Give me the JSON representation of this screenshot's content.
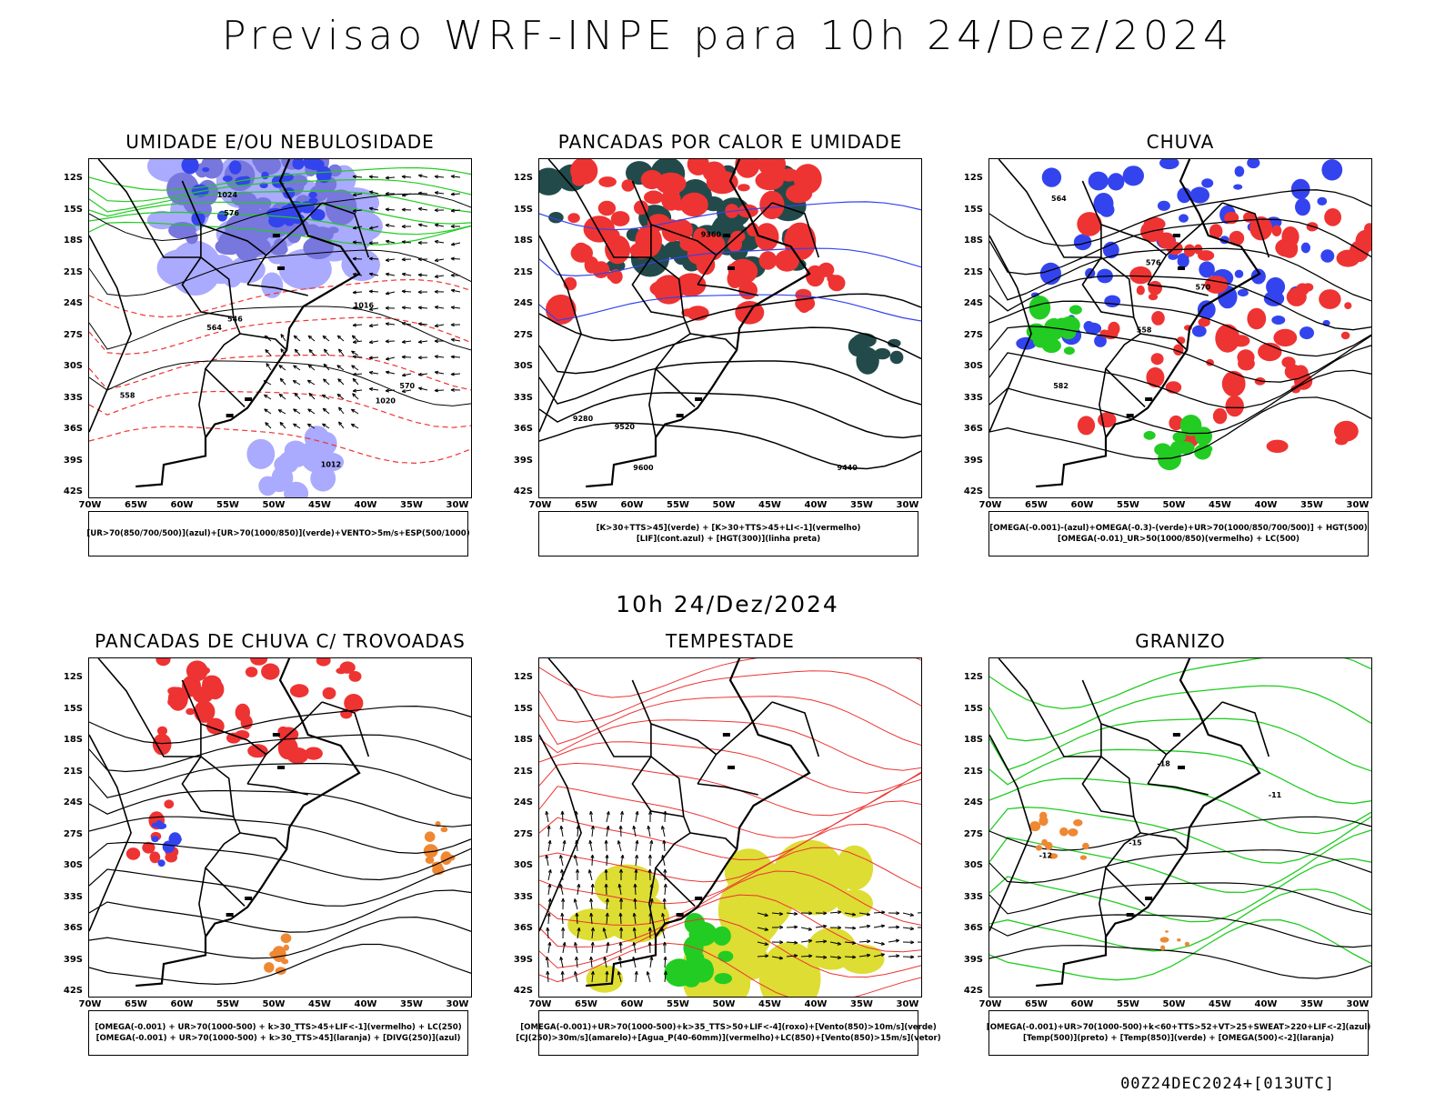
{
  "header": {
    "title": "Previsao WRF-INPE  para 10h 24/Dez/2024",
    "subtitle": "10h 24/Dez/2024",
    "footer": "00Z24DEC2024+[013UTC]"
  },
  "axes": {
    "lat_labels": [
      "12S",
      "15S",
      "18S",
      "21S",
      "24S",
      "27S",
      "30S",
      "33S",
      "36S",
      "39S",
      "42S"
    ],
    "lon_labels": [
      "70W",
      "65W",
      "60W",
      "55W",
      "50W",
      "45W",
      "40W",
      "35W",
      "30W"
    ]
  },
  "colors": {
    "blue": "#3344ee",
    "light_blue": "#aaaaff",
    "mid_blue": "#7777dd",
    "green": "#22cc22",
    "red": "#ee3333",
    "dark_teal": "#234a4a",
    "orange": "#ee8833",
    "yellow": "#dddd33",
    "black": "#000000"
  },
  "panels": [
    {
      "id": "umidade",
      "title": "UMIDADE E/OU NEBULOSIDADE",
      "legend": [
        "[UR>70(850/700/500)](azul)+[UR>70(1000/850)](verde)+VENTO>5m/s+ESP(500/1000)"
      ],
      "contour_labels": [
        "1012",
        "1016",
        "1020",
        "1024",
        "570",
        "576",
        "558",
        "546",
        "564"
      ]
    },
    {
      "id": "pancadas_calor",
      "title": "PANCADAS POR CALOR E UMIDADE",
      "legend": [
        "[K>30+TTS>45](verde) + [K>30+TTS>45+LI<-1](vermelho)",
        "[LIF](cont.azul) + [HGT(300)](linha preta)"
      ],
      "contour_labels": [
        "9600",
        "9520",
        "9440",
        "9360",
        "9280"
      ]
    },
    {
      "id": "chuva",
      "title": "CHUVA",
      "legend": [
        "[OMEGA(-0.001)-(azul)+OMEGA(-0.3)-(verde)+UR>70(1000/850/700/500)] + HGT(500)",
        "[OMEGA(-0.01)_UR>50(1000/850)(vermelho) + LC(500)"
      ],
      "contour_labels": [
        "582",
        "576",
        "570",
        "564",
        "558"
      ]
    },
    {
      "id": "pancadas_trovoadas",
      "title": "PANCADAS DE CHUVA C/ TROVOADAS",
      "legend": [
        "[OMEGA(-0.001) + UR>70(1000-500) + k>30_TTS>45+LIF<-1](vermelho) + LC(250)",
        "[OMEGA(-0.001) + UR>70(1000-500) + k>30_TTS>45](laranja) + [DIVG(250)](azul)"
      ],
      "contour_labels": []
    },
    {
      "id": "tempestade",
      "title": "TEMPESTADE",
      "legend": [
        "[OMEGA(-0.001)+UR>70(1000-500)+k>35_TTS>50+LIF<-4](roxo)+[Vento(850)>10m/s](verde)",
        "[CJ(250)>30m/s](amarelo)+[Agua_P(40-60mm)](vermelho)+LC(850)+[Vento(850)>15m/s](vetor)"
      ],
      "contour_labels": []
    },
    {
      "id": "granizo",
      "title": "GRANIZO",
      "legend": [
        "[OMEGA(-0.001)+UR>70(1000-500)+k<60+TTS>52+VT>25+SWEAT>220+LIF<-2](azul)",
        "[Temp(500)](preto) + [Temp(850)](verde) + [OMEGA(500)<-2](laranja)"
      ],
      "contour_labels": [
        "-12",
        "-15",
        "-18",
        "-11"
      ]
    }
  ]
}
